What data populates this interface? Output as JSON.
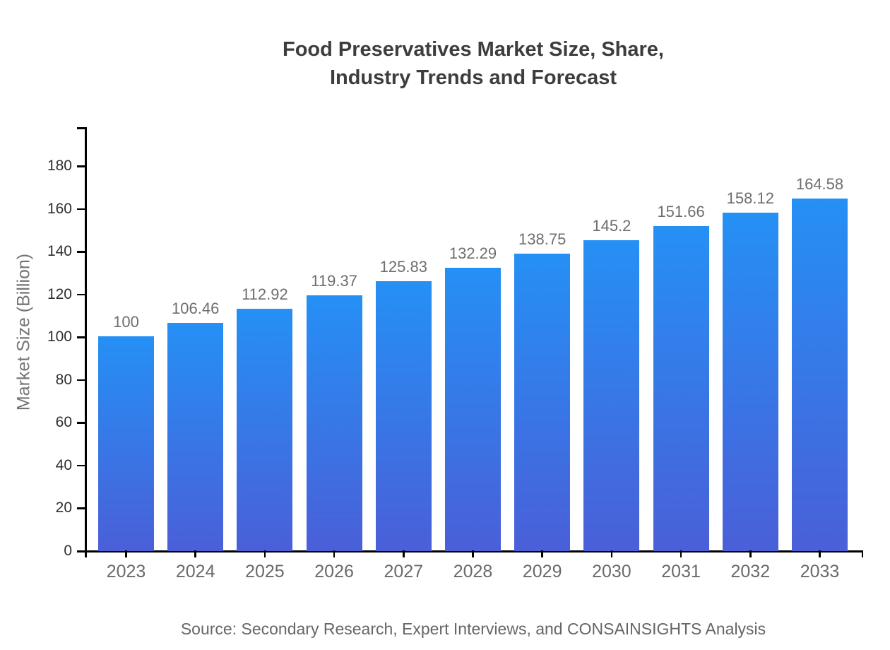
{
  "page": {
    "background": "#ffffff"
  },
  "title": {
    "line1": "Food Preservatives Market Size, Share,",
    "line2": "Industry Trends and Forecast"
  },
  "source": {
    "text": "Source: Secondary Research, Expert Interviews, and CONSAINSIGHTS Analysis"
  },
  "chart_data": {
    "type": "bar",
    "title": "Food Preservatives Market Size, Share, Industry Trends and Forecast",
    "categories": [
      "2023",
      "2024",
      "2025",
      "2026",
      "2027",
      "2028",
      "2029",
      "2030",
      "2031",
      "2032",
      "2033"
    ],
    "values": [
      100,
      106.46,
      112.92,
      119.37,
      125.83,
      132.29,
      138.75,
      145.2,
      151.66,
      158.12,
      164.58
    ],
    "value_labels": [
      "100",
      "106.46",
      "112.92",
      "119.37",
      "125.83",
      "132.29",
      "138.75",
      "145.2",
      "151.66",
      "158.12",
      "164.58"
    ],
    "xlabel": "",
    "ylabel": "Market Size (Billion)",
    "yticks": [
      0,
      20,
      40,
      60,
      80,
      100,
      120,
      140,
      160,
      180
    ],
    "ylim": [
      0,
      198
    ],
    "grid": false,
    "legend": "none",
    "colors": {
      "bar_gradient_top": "#2590f5",
      "bar_gradient_bottom": "#4a5fd8",
      "axis": "#000000",
      "y_tick_label": "#2e2e2e",
      "category_label": "#6a6a6a",
      "value_label": "#6e6e6e",
      "title": "#3d3d3d",
      "axis_title": "#757575",
      "source": "#666666"
    }
  }
}
